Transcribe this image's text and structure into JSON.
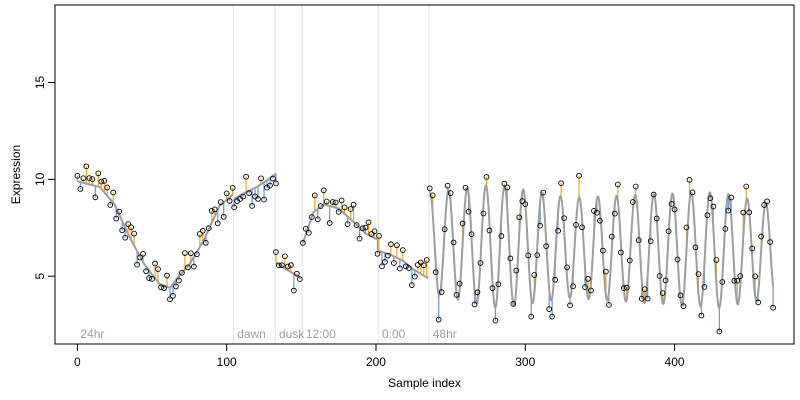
{
  "chart_data": {
    "type": "scatter",
    "xlabel": "Sample index",
    "ylabel": "Expression",
    "xlim": [
      -15,
      480
    ],
    "ylim": [
      1.5,
      19
    ],
    "x_ticks": [
      0,
      100,
      200,
      300,
      400
    ],
    "y_ticks": [
      5,
      10,
      15
    ],
    "grid": false,
    "colors": {
      "fit_line": "#9e9e9e",
      "residual_above": "#f5a623",
      "residual_below": "#6b96d6",
      "point_edge": "#000000",
      "segment_line": "#e3e3e3",
      "segment_label": "#a0a0a0"
    },
    "segments": [
      {
        "label": "24hr",
        "start": 0
      },
      {
        "label": "dawn",
        "start": 105
      },
      {
        "label": "dusk",
        "start": 133
      },
      {
        "label": "12:00",
        "start": 151
      },
      {
        "label": "0:00",
        "start": 202
      },
      {
        "label": "48hr",
        "start": 236
      }
    ],
    "fit_segments": [
      {
        "x0": 0,
        "x1": 104,
        "shape": "curve",
        "points": [
          [
            0,
            9.9
          ],
          [
            15,
            9.6
          ],
          [
            25,
            8.7
          ],
          [
            35,
            7.0
          ],
          [
            45,
            5.6
          ],
          [
            55,
            4.6
          ],
          [
            62,
            4.4
          ],
          [
            68,
            5.0
          ],
          [
            75,
            5.6
          ],
          [
            85,
            6.9
          ],
          [
            95,
            8.6
          ],
          [
            104,
            9.2
          ]
        ]
      },
      {
        "x0": 105,
        "x1": 133,
        "shape": "curve",
        "points": [
          [
            105,
            9.0
          ],
          [
            112,
            9.3
          ],
          [
            120,
            9.6
          ],
          [
            126,
            9.9
          ],
          [
            133,
            10.3
          ]
        ]
      },
      {
        "x0": 133,
        "x1": 150,
        "shape": "curve",
        "points": [
          [
            133,
            5.7
          ],
          [
            141,
            5.3
          ],
          [
            150,
            4.9
          ]
        ]
      },
      {
        "x0": 151,
        "x1": 201,
        "shape": "curve",
        "points": [
          [
            151,
            6.7
          ],
          [
            158,
            8.3
          ],
          [
            165,
            8.7
          ],
          [
            175,
            8.5
          ],
          [
            185,
            7.8
          ],
          [
            193,
            7.2
          ],
          [
            201,
            6.9
          ]
        ]
      },
      {
        "x0": 202,
        "x1": 235,
        "shape": "curve",
        "points": [
          [
            202,
            6.3
          ],
          [
            210,
            6.1
          ],
          [
            218,
            5.8
          ],
          [
            226,
            5.3
          ],
          [
            235,
            4.9
          ]
        ]
      },
      {
        "x0": 236,
        "x1": 466,
        "shape": "oscillation",
        "period": 12.5,
        "phase": 3,
        "base": [
          [
            236,
            6.7
          ],
          [
            300,
            6.5
          ],
          [
            400,
            6.4
          ],
          [
            466,
            6.3
          ]
        ],
        "amp": [
          [
            236,
            2.6
          ],
          [
            280,
            3.2
          ],
          [
            330,
            2.6
          ],
          [
            380,
            2.8
          ],
          [
            430,
            3.0
          ],
          [
            466,
            2.4
          ]
        ]
      }
    ]
  }
}
